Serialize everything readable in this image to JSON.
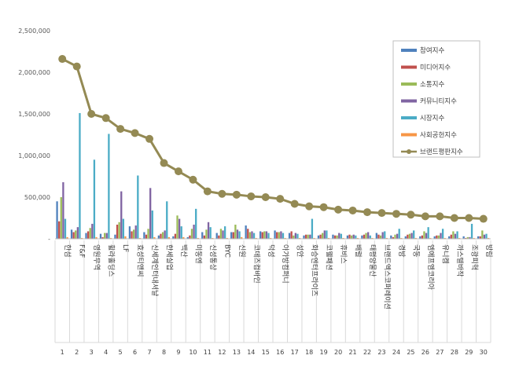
{
  "chart_data": {
    "type": "bar",
    "title": "",
    "xlabel": "",
    "ylabel": "",
    "ylim": [
      0,
      2500000
    ],
    "yticks": [
      0,
      500000,
      1000000,
      1500000,
      2000000,
      2500000
    ],
    "ytick_labels": [
      "-",
      "500,000",
      "1,000,000",
      "1,500,000",
      "2,000,000",
      "2,500,000"
    ],
    "grid": false,
    "legend_position": "top-right",
    "categories": [
      "한섬",
      "F&F",
      "영원무역",
      "휠라홀딩스",
      "LF",
      "효성티앤씨",
      "신세계인터내셔날",
      "한세실업",
      "백산",
      "미동엔",
      "신성통상",
      "BYC",
      "신원",
      "코데즈컴바인",
      "덕성",
      "아가방컴퍼니",
      "성안",
      "화승엔터프라이즈",
      "코웰패션",
      "휴비스",
      "배럴",
      "태평양물산",
      "브랜드엑스코퍼레이션",
      "경방",
      "국동",
      "엠에프엠코리아",
      "유니켐",
      "까스텔바작",
      "조광피혁",
      "방림"
    ],
    "ranks": [
      "1",
      "2",
      "3",
      "4",
      "5",
      "6",
      "7",
      "8",
      "9",
      "10",
      "11",
      "12",
      "13",
      "14",
      "15",
      "16",
      "17",
      "18",
      "19",
      "20",
      "21",
      "22",
      "23",
      "24",
      "25",
      "26",
      "27",
      "28",
      "29",
      "30"
    ],
    "series": [
      {
        "name": "참여지수",
        "color": "#4f81bd",
        "values": [
          450000,
          110000,
          70000,
          60000,
          50000,
          150000,
          80000,
          40000,
          30000,
          20000,
          80000,
          70000,
          80000,
          160000,
          90000,
          100000,
          70000,
          40000,
          40000,
          50000,
          40000,
          40000,
          70000,
          40000,
          30000,
          30000,
          30000,
          30000,
          30000,
          30000
        ]
      },
      {
        "name": "미디어지수",
        "color": "#c0504d",
        "values": [
          210000,
          80000,
          90000,
          20000,
          170000,
          90000,
          50000,
          60000,
          60000,
          40000,
          40000,
          40000,
          80000,
          120000,
          80000,
          80000,
          90000,
          50000,
          50000,
          40000,
          50000,
          50000,
          50000,
          20000,
          50000,
          40000,
          40000,
          50000,
          10000,
          30000
        ]
      },
      {
        "name": "소통지수",
        "color": "#9bbb59",
        "values": [
          500000,
          100000,
          130000,
          70000,
          200000,
          110000,
          120000,
          80000,
          280000,
          120000,
          110000,
          120000,
          170000,
          80000,
          90000,
          80000,
          40000,
          50000,
          70000,
          40000,
          40000,
          70000,
          40000,
          50000,
          60000,
          90000,
          40000,
          90000,
          20000,
          100000
        ]
      },
      {
        "name": "커뮤니티지수",
        "color": "#8064a2",
        "values": [
          680000,
          140000,
          180000,
          70000,
          570000,
          160000,
          610000,
          100000,
          240000,
          170000,
          200000,
          100000,
          110000,
          90000,
          90000,
          90000,
          70000,
          50000,
          100000,
          70000,
          50000,
          80000,
          80000,
          60000,
          70000,
          70000,
          70000,
          60000,
          20000,
          50000
        ]
      },
      {
        "name": "시장지수",
        "color": "#4bacc6",
        "values": [
          240000,
          1510000,
          950000,
          1260000,
          240000,
          760000,
          340000,
          450000,
          150000,
          360000,
          140000,
          150000,
          90000,
          70000,
          70000,
          70000,
          60000,
          240000,
          100000,
          60000,
          40000,
          40000,
          90000,
          120000,
          100000,
          140000,
          120000,
          90000,
          180000,
          60000
        ]
      },
      {
        "name": "사회공헌지수",
        "color": "#f79646",
        "values": [
          20000,
          10000,
          20000,
          10000,
          30000,
          10000,
          20000,
          20000,
          20000,
          10000,
          10000,
          10000,
          20000,
          10000,
          10000,
          10000,
          10000,
          10000,
          10000,
          10000,
          10000,
          10000,
          10000,
          10000,
          10000,
          10000,
          10000,
          10000,
          10000,
          10000
        ]
      }
    ],
    "line_series": {
      "name": "브랜드평판지수",
      "color": "#948a54",
      "values": [
        2160000,
        2070000,
        1500000,
        1450000,
        1320000,
        1270000,
        1200000,
        910000,
        810000,
        710000,
        570000,
        540000,
        530000,
        510000,
        500000,
        480000,
        420000,
        390000,
        380000,
        350000,
        340000,
        320000,
        310000,
        300000,
        290000,
        270000,
        270000,
        250000,
        250000,
        240000
      ]
    }
  }
}
